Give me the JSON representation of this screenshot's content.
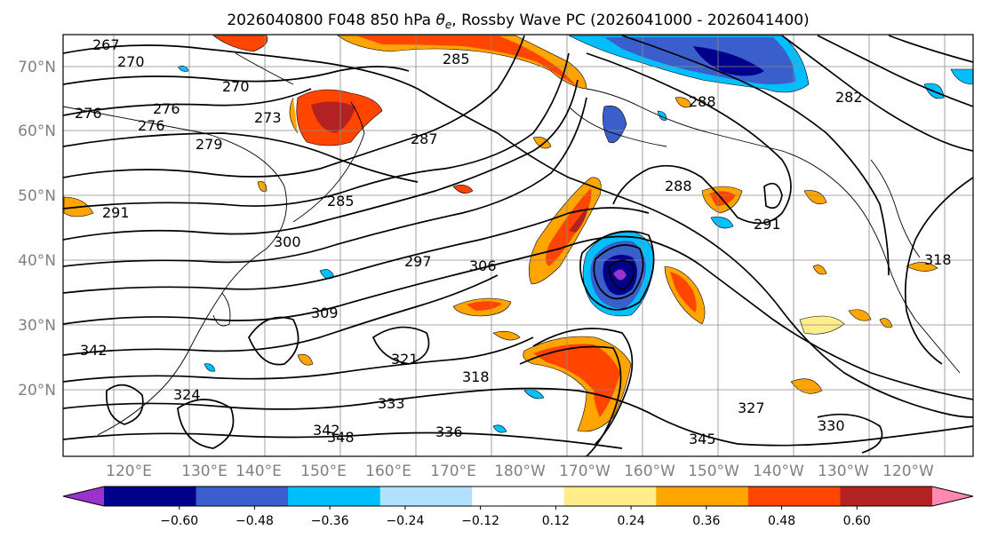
{
  "title_main": "2026040800 F048 850 hPa ",
  "title_symbol": "θ",
  "title_sub": "e",
  "title_rest": ", Rossby Wave PC (2026041000 - 2026041400)",
  "lat_labels": [
    "70°N",
    "60°N",
    "50°N",
    "40°N",
    "30°N",
    "20°N"
  ],
  "lon_labels": [
    "120°E",
    "130°E",
    "140°E",
    "150°E",
    "160°E",
    "170°E",
    "180°W",
    "170°W",
    "160°W",
    "150°W",
    "140°W",
    "130°W",
    "120°W"
  ],
  "colorbar": {
    "colors": [
      "#9933cc",
      "#00008b",
      "#3a5fcd",
      "#00bfff",
      "#b0e2ff",
      "#ffffff",
      "#ffec8b",
      "#ffa500",
      "#ff4500",
      "#b22222",
      "#ff89b0"
    ],
    "tick_labels": [
      "−0.60",
      "−0.48",
      "−0.36",
      "−0.24",
      "−0.12",
      "0.12",
      "0.24",
      "0.36",
      "0.48",
      "0.60"
    ]
  },
  "contour_labels": [
    "267",
    "270",
    "270",
    "276",
    "276",
    "276",
    "273",
    "279",
    "285",
    "285",
    "287",
    "282",
    "288",
    "288",
    "291",
    "291",
    "300",
    "297",
    "306",
    "309",
    "318",
    "318",
    "321",
    "324",
    "327",
    "330",
    "333",
    "336",
    "342",
    "342",
    "345",
    "348"
  ]
}
